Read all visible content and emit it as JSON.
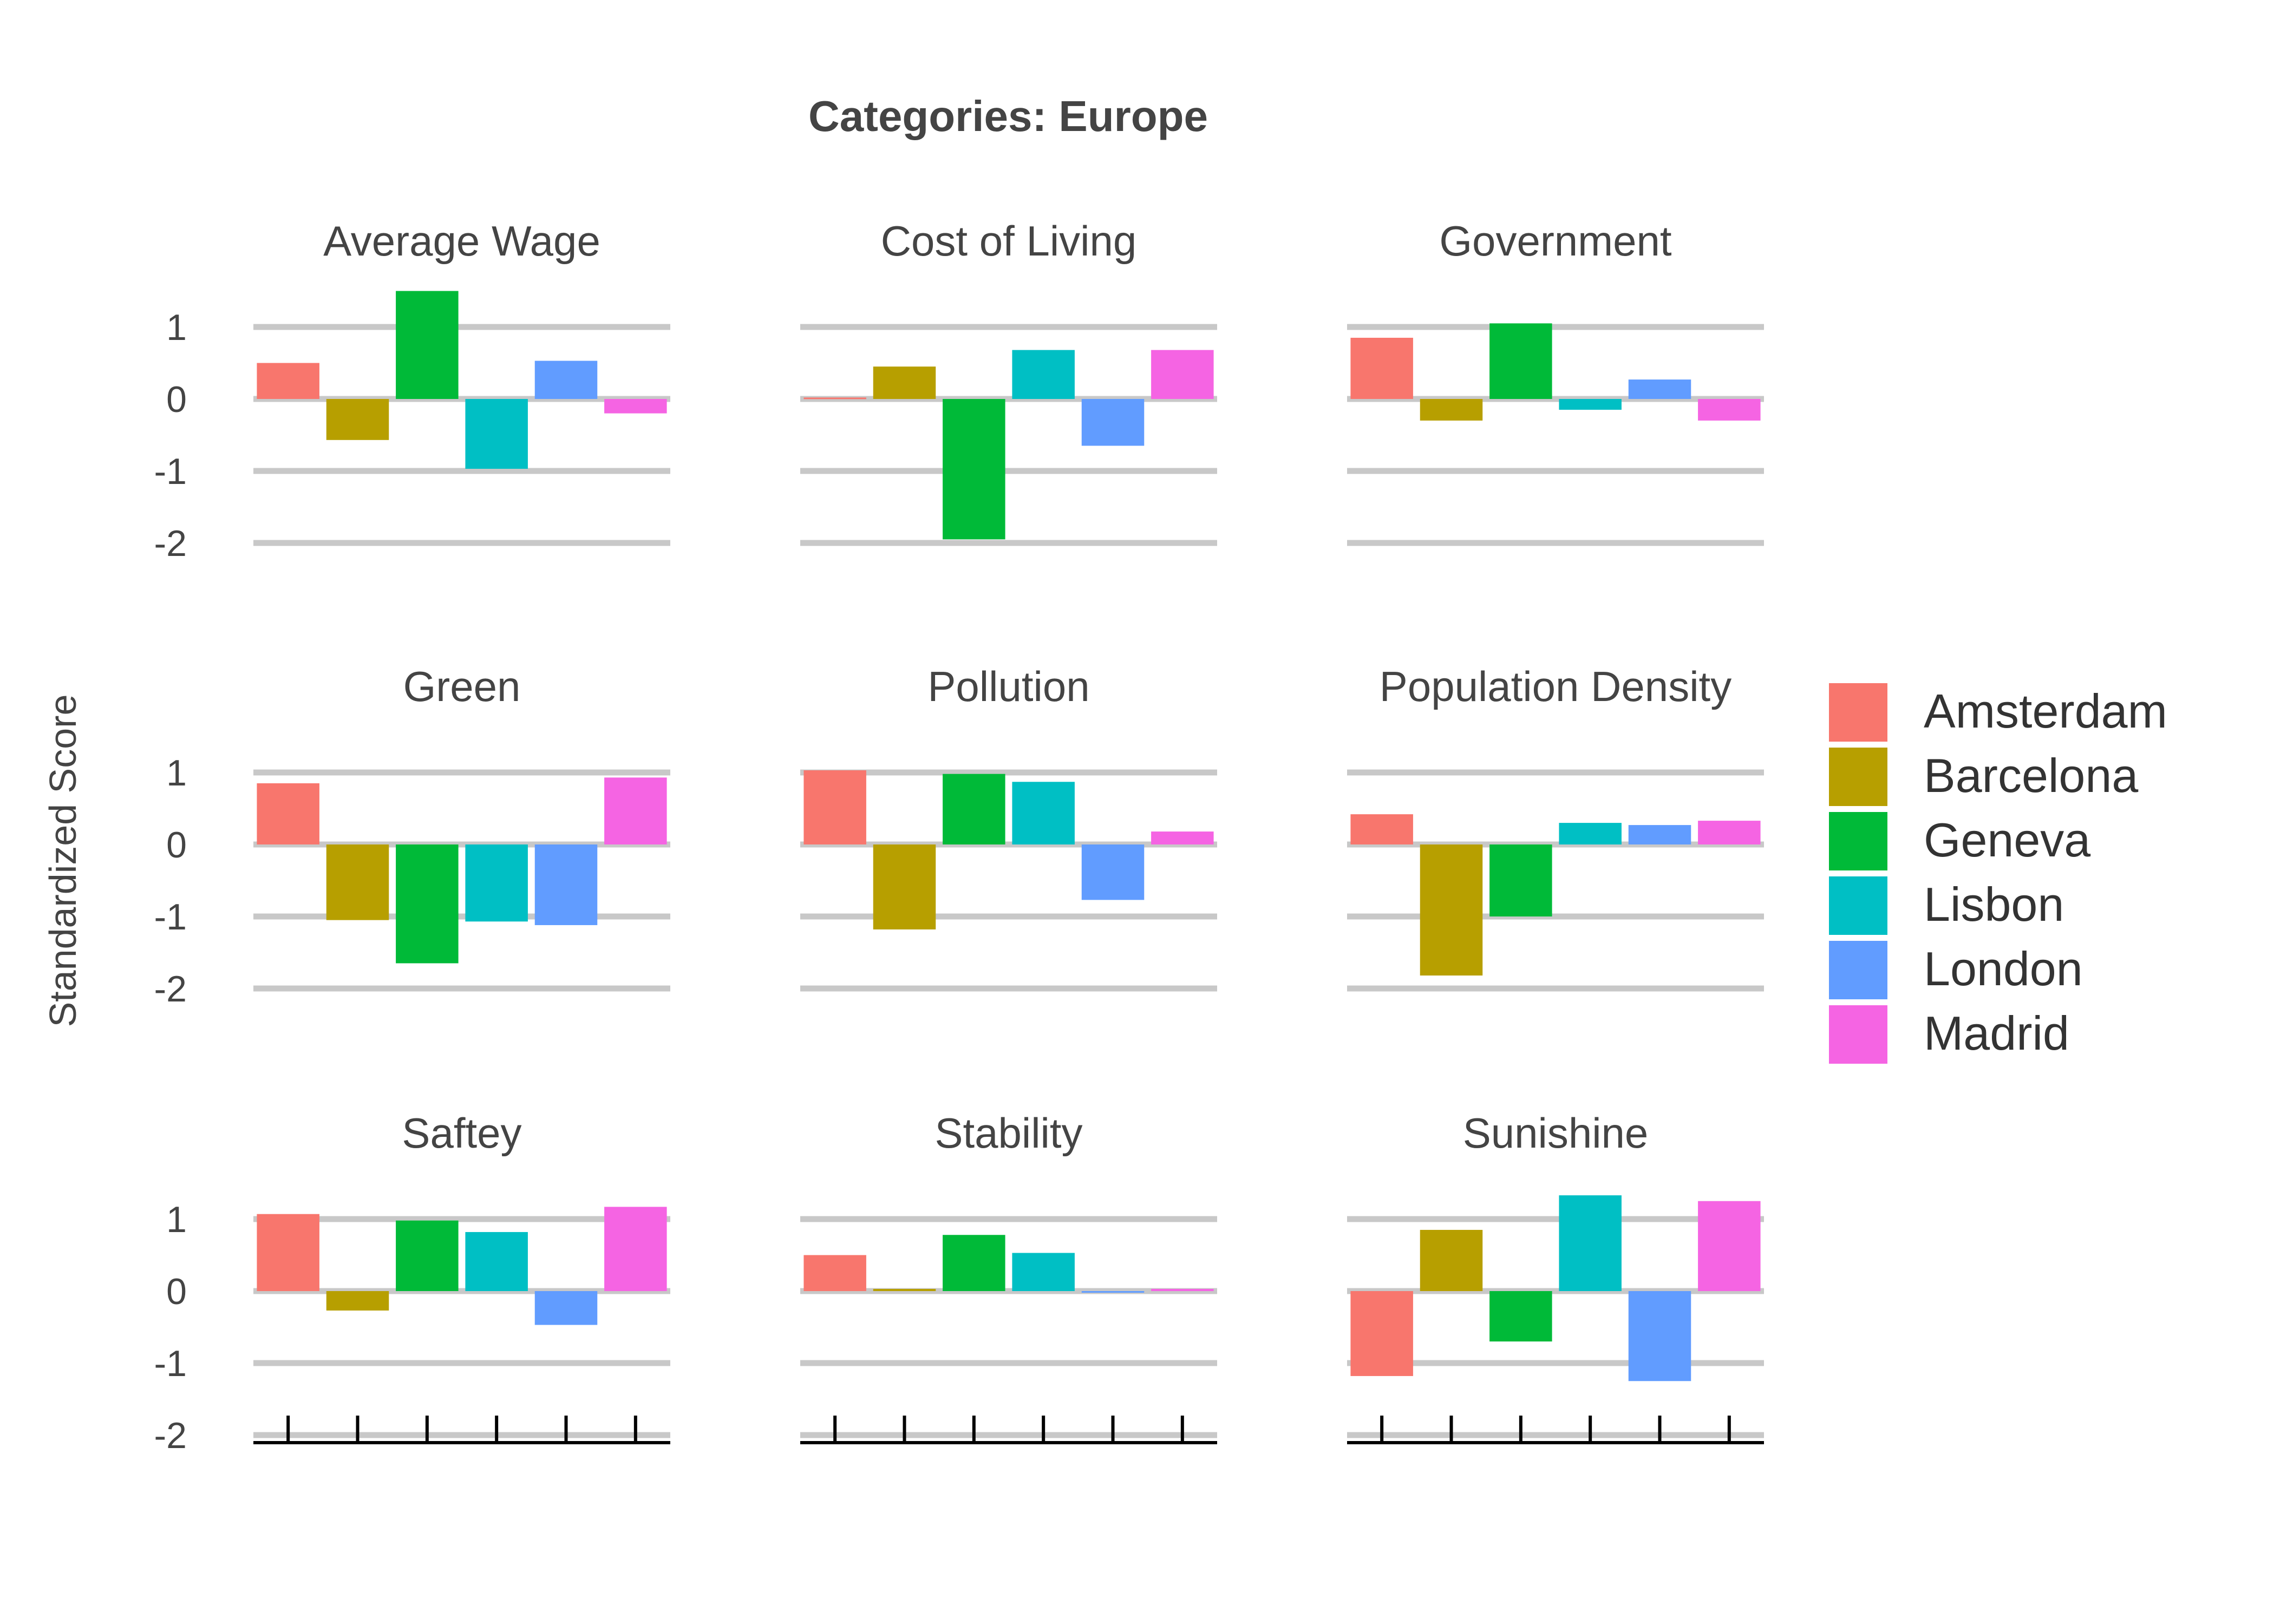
{
  "chart_data": {
    "type": "bar",
    "title": "Categories: Europe",
    "ylabel": "Standardized Score",
    "xlabel": "",
    "ylim": [
      -2.0,
      1.5
    ],
    "yticks": [
      1,
      0,
      -1,
      -2
    ],
    "ytick_labels": [
      "1",
      "0",
      "-1",
      "-2"
    ],
    "grid": true,
    "legend_position": "right",
    "categories": [
      "Amsterdam",
      "Barcelona",
      "Geneva",
      "Lisbon",
      "London",
      "Madrid"
    ],
    "colors": {
      "Amsterdam": "#F8766D",
      "Barcelona": "#B79F00",
      "Geneva": "#00BA38",
      "Lisbon": "#00BFC4",
      "London": "#619CFF",
      "Madrid": "#F564E3"
    },
    "panels": [
      {
        "name": "Average Wage",
        "values": [
          0.5,
          -0.57,
          1.5,
          -0.97,
          0.53,
          -0.2
        ]
      },
      {
        "name": "Cost of Living",
        "values": [
          0.02,
          0.45,
          -1.95,
          0.68,
          -0.65,
          0.68
        ]
      },
      {
        "name": "Government",
        "values": [
          0.85,
          -0.3,
          1.05,
          -0.15,
          0.27,
          -0.3
        ]
      },
      {
        "name": "Green",
        "values": [
          0.85,
          -1.05,
          -1.65,
          -1.07,
          -1.12,
          0.93
        ]
      },
      {
        "name": "Pollution",
        "values": [
          1.03,
          -1.18,
          0.98,
          0.87,
          -0.77,
          0.18
        ]
      },
      {
        "name": "Population Density",
        "values": [
          0.42,
          -1.82,
          -1.0,
          0.3,
          0.27,
          0.33
        ]
      },
      {
        "name": "Saftey",
        "values": [
          1.07,
          -0.27,
          0.98,
          0.82,
          -0.47,
          1.17
        ]
      },
      {
        "name": "Stability",
        "values": [
          0.5,
          0.03,
          0.78,
          0.53,
          -0.02,
          0.03
        ]
      },
      {
        "name": "Sunishine",
        "values": [
          -1.18,
          0.85,
          -0.7,
          1.33,
          -1.25,
          1.25
        ]
      }
    ]
  }
}
